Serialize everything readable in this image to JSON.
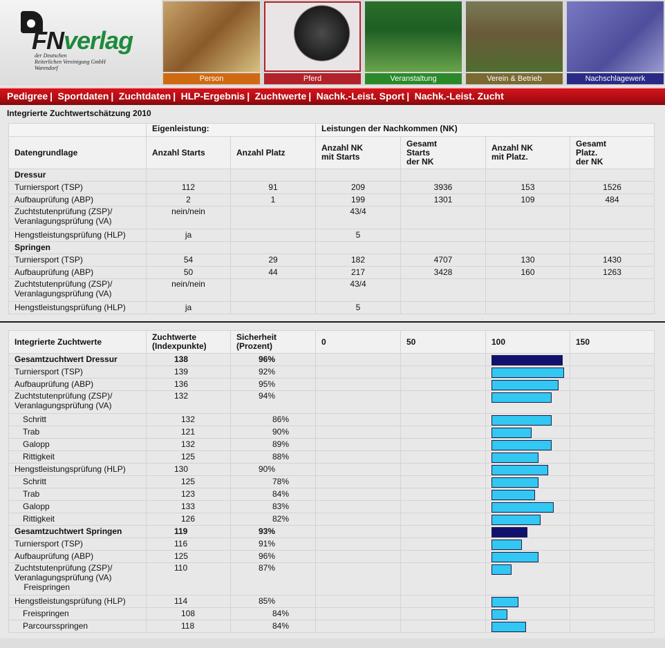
{
  "logo": {
    "fn": "FN",
    "verlag": "verlag",
    "subtitle": [
      "der Deutschen",
      "Reiterlichen Vereinigung GmbH",
      "Warendorf"
    ]
  },
  "tiles": [
    {
      "label": "Person",
      "color": "#d06a12"
    },
    {
      "label": "Pferd",
      "color": "#b2222a"
    },
    {
      "label": "Veranstaltung",
      "color": "#2a8a2a"
    },
    {
      "label": "Verein & Betrieb",
      "color": "#7a6a32"
    },
    {
      "label": "Nachschlagewerk",
      "color": "#2a2a86"
    }
  ],
  "nav": [
    "Pedigree",
    "Sportdaten",
    "Zuchtdaten",
    "HLP-Ergebnis",
    "Zuchtwerte",
    "Nachk.-Leist. Sport",
    "Nachk.-Leist. Zucht"
  ],
  "title": "Integrierte Zuchtwertschätzung 2010",
  "perf": {
    "group1": "Eigenleistung:",
    "group2": "Leistungen der Nachkommen (NK)",
    "headers": [
      "Datengrundlage",
      "Anzahl Starts",
      "Anzahl Platz",
      "Anzahl NK\nmit Starts",
      "Gesamt\nStarts\nder NK",
      "Anzahl NK\nmit Platz.",
      "Gesamt\nPlatz.\nder NK"
    ],
    "sections": [
      {
        "name": "Dressur",
        "rows": [
          [
            "Turniersport (TSP)",
            "112",
            "91",
            "209",
            "3936",
            "153",
            "1526"
          ],
          [
            "Aufbauprüfung (ABP)",
            "2",
            "1",
            "199",
            "1301",
            "109",
            "484"
          ],
          [
            "Zuchtstutenprüfung (ZSP)/\nVeranlagungsprüfung (VA)",
            "nein/nein",
            "",
            "43/4",
            "",
            "",
            ""
          ],
          [
            "Hengstleistungsprüfung (HLP)",
            "ja",
            "",
            "5",
            "",
            "",
            ""
          ]
        ]
      },
      {
        "name": "Springen",
        "rows": [
          [
            "Turniersport (TSP)",
            "54",
            "29",
            "182",
            "4707",
            "130",
            "1430"
          ],
          [
            "Aufbauprüfung (ABP)",
            "50",
            "44",
            "217",
            "3428",
            "160",
            "1263"
          ],
          [
            "Zuchtstutenprüfung (ZSP)/\nVeranlagungsprüfung (VA)",
            "nein/nein",
            "",
            "43/4",
            "",
            "",
            ""
          ],
          [
            "Hengstleistungsprüfung (HLP)",
            "ja",
            "",
            "5",
            "",
            "",
            ""
          ]
        ]
      }
    ]
  },
  "zw": {
    "headers": [
      "Integrierte Zuchtwerte",
      "Zuchtwerte\n(Indexpunkte)",
      "Sicherheit\n(Prozent)",
      "0",
      "50",
      "100",
      "150"
    ],
    "colors": {
      "total": "#11116f",
      "part": "#33c8f3"
    },
    "rows": [
      {
        "label": "Gesamtzuchtwert Dressur",
        "index": "138",
        "pct": "96%",
        "total": true,
        "value": 138
      },
      {
        "label": "Turniersport (TSP)",
        "index": "139",
        "pct": "92%",
        "value": 139
      },
      {
        "label": "Aufbauprüfung (ABP)",
        "index": "136",
        "pct": "95%",
        "value": 136
      },
      {
        "label": "Zuchtstutenprüfung (ZSP)/\nVeranlagungsprüfung (VA)",
        "index": "132",
        "pct": "94%",
        "value": 132,
        "tall": true
      },
      {
        "label": "Schritt",
        "index": "132",
        "pct": "86%",
        "value": 132,
        "sub": true
      },
      {
        "label": "Trab",
        "index": "121",
        "pct": "90%",
        "value": 121,
        "sub": true
      },
      {
        "label": "Galopp",
        "index": "132",
        "pct": "89%",
        "value": 132,
        "sub": true
      },
      {
        "label": "Rittigkeit",
        "index": "125",
        "pct": "88%",
        "value": 125,
        "sub": true
      },
      {
        "label": "Hengstleistungsprüfung (HLP)",
        "index": "130",
        "pct": "90%",
        "value": 130
      },
      {
        "label": "Schritt",
        "index": "125",
        "pct": "78%",
        "value": 125,
        "sub": true
      },
      {
        "label": "Trab",
        "index": "123",
        "pct": "84%",
        "value": 123,
        "sub": true
      },
      {
        "label": "Galopp",
        "index": "133",
        "pct": "83%",
        "value": 133,
        "sub": true
      },
      {
        "label": "Rittigkeit",
        "index": "126",
        "pct": "82%",
        "value": 126,
        "sub": true
      },
      {
        "label": "Gesamtzuchtwert Springen",
        "index": "119",
        "pct": "93%",
        "total": true,
        "value": 119
      },
      {
        "label": "Turniersport (TSP)",
        "index": "116",
        "pct": "91%",
        "value": 116
      },
      {
        "label": "Aufbauprüfung (ABP)",
        "index": "125",
        "pct": "96%",
        "value": 125
      },
      {
        "label": "Zuchtstutenprüfung (ZSP)/\nVeranlagungsprüfung (VA)\n    Freispringen",
        "index": "110",
        "pct": "87%",
        "value": 110,
        "xtall": true
      },
      {
        "label": "Hengstleistungsprüfung (HLP)",
        "index": "114",
        "pct": "85%",
        "value": 114
      },
      {
        "label": "Freispringen",
        "index": "108",
        "pct": "84%",
        "value": 108,
        "sub": true
      },
      {
        "label": "Parcoursspringen",
        "index": "118",
        "pct": "84%",
        "value": 118,
        "sub": true
      }
    ]
  }
}
